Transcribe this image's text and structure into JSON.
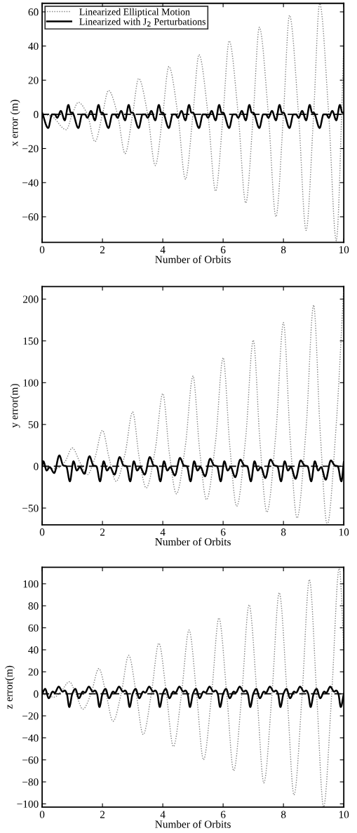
{
  "chart_data": [
    {
      "type": "line",
      "xlabel": "Number of Orbits",
      "ylabel": "x error (m)",
      "xlim": [
        0,
        10
      ],
      "ylim": [
        -75,
        65
      ],
      "xticks": [
        0,
        2,
        4,
        6,
        8,
        10
      ],
      "yticks": [
        -60,
        -40,
        -20,
        0,
        20,
        40,
        60
      ],
      "legend": "top left",
      "grid": false,
      "ref_lines": [
        {
          "axis": "y",
          "value": 0,
          "color": "#000000",
          "line_style": "dashed"
        }
      ],
      "series": [
        {
          "name": "Linearized Elliptical Motion",
          "color": "#808080",
          "line_style": "dotted",
          "x": [
            0,
            0.3,
            0.8,
            1.0,
            1.2,
            1.5,
            1.75,
            2.0,
            2.2,
            2.5,
            2.75,
            3.0,
            3.2,
            3.5,
            3.75,
            4.0,
            4.2,
            4.5,
            4.75,
            5.0,
            5.2,
            5.5,
            5.75,
            6.0,
            6.2,
            6.5,
            6.75,
            7.0,
            7.2,
            7.5,
            7.75,
            8.0,
            8.2,
            8.5,
            8.75,
            9.0,
            9.2,
            9.5,
            9.75,
            10
          ],
          "values": [
            0,
            -1,
            -9,
            0,
            7,
            0,
            -16,
            0,
            14,
            0,
            -23,
            0,
            21,
            0,
            -30,
            0,
            28,
            0,
            -38,
            0,
            35,
            0,
            -45,
            0,
            43,
            0,
            -52,
            0,
            51,
            0,
            -60,
            0,
            58,
            0,
            -68,
            0,
            65,
            0,
            -74,
            40
          ]
        },
        {
          "name": "Linearized with J$_{2}$ Perturbations",
          "color": "#000000",
          "line_style": "solid",
          "x": [
            0,
            0.2,
            0.33,
            0.42,
            0.5,
            0.62,
            0.75,
            0.87,
            0.95,
            1,
            1.2,
            1.33,
            1.42,
            1.5,
            1.62,
            1.75,
            1.87,
            1.95,
            2,
            2.2,
            2.33,
            2.42,
            2.5,
            2.62,
            2.75,
            2.87,
            2.95,
            3,
            3.2,
            3.33,
            3.42,
            3.5,
            3.62,
            3.75,
            3.87,
            3.95,
            4,
            4.2,
            4.33,
            4.42,
            4.5,
            4.62,
            4.75,
            4.87,
            4.95,
            5,
            5.2,
            5.33,
            5.42,
            5.5,
            5.62,
            5.75,
            5.87,
            5.95,
            6,
            6.2,
            6.33,
            6.42,
            6.5,
            6.62,
            6.75,
            6.87,
            6.95,
            7,
            7.2,
            7.33,
            7.42,
            7.5,
            7.62,
            7.75,
            7.87,
            7.95,
            8,
            8.2,
            8.33,
            8.42,
            8.5,
            8.62,
            8.75,
            8.87,
            8.95,
            9,
            9.2,
            9.33,
            9.42,
            9.5,
            9.62,
            9.75,
            9.87,
            9.95,
            10
          ],
          "values": [
            1,
            -8,
            0,
            0,
            -2,
            2,
            -3.5,
            5.5,
            1,
            1,
            -8,
            0,
            0,
            -2,
            2,
            -3.5,
            5.5,
            1,
            1,
            -8,
            0,
            0,
            -2,
            2,
            -3.5,
            5.5,
            1,
            1,
            -8,
            0,
            0,
            -2,
            2,
            -3.5,
            5.5,
            1,
            1,
            -8,
            0,
            0,
            -2,
            2,
            -3.5,
            5.5,
            1,
            1,
            -8,
            0,
            0,
            -2,
            2,
            -3.5,
            5.5,
            1,
            1,
            -8,
            0,
            0,
            -2,
            2,
            -3.5,
            5.5,
            1,
            1,
            -8,
            0,
            0,
            -2,
            2,
            -3.5,
            5.5,
            1,
            1,
            -8,
            0,
            0,
            -2,
            2,
            -3.5,
            5.5,
            1,
            1,
            -8,
            0,
            0,
            -2,
            2,
            -3.5,
            5.5,
            1,
            1
          ]
        }
      ]
    },
    {
      "type": "line",
      "xlabel": "Number of Orbits",
      "ylabel": "y error(m)",
      "xlim": [
        0,
        10
      ],
      "ylim": [
        -70,
        215
      ],
      "xticks": [
        0,
        2,
        4,
        6,
        8,
        10
      ],
      "yticks": [
        -50,
        0,
        50,
        100,
        150,
        200
      ],
      "grid": false,
      "ref_lines": [
        {
          "axis": "y",
          "value": 0,
          "color": "#000000",
          "line_style": "dashed"
        }
      ],
      "series": [
        {
          "color": "#808080",
          "line_style": "dotted",
          "x": [
            0,
            0.45,
            0.75,
            1.0,
            1.25,
            1.5,
            1.75,
            2.0,
            2.22,
            2.45,
            2.75,
            3.0,
            3.22,
            3.45,
            3.75,
            4.0,
            4.22,
            4.45,
            4.75,
            5.0,
            5.22,
            5.45,
            5.75,
            6.0,
            6.22,
            6.45,
            6.75,
            7.0,
            7.22,
            7.45,
            7.75,
            8.0,
            8.22,
            8.45,
            8.75,
            9.0,
            9.22,
            9.45,
            9.75,
            10
          ],
          "values": [
            0,
            -3,
            5,
            22,
            5,
            -10,
            10,
            43,
            10,
            -18,
            15,
            65,
            10,
            -26,
            20,
            87,
            15,
            -33,
            25,
            108,
            20,
            -40,
            30,
            130,
            25,
            -48,
            35,
            151,
            30,
            -55,
            40,
            172,
            35,
            -62,
            45,
            193,
            40,
            -70,
            50,
            215
          ]
        },
        {
          "color": "#000000",
          "line_style": "solid",
          "x": [
            0,
            0.04,
            0.15,
            0.25,
            0.4,
            0.57,
            0.7,
            0.8,
            0.92,
            1.04,
            1.15,
            1.25,
            1.4,
            1.57,
            1.7,
            1.8,
            1.92,
            2.04,
            2.15,
            2.25,
            2.4,
            2.57,
            2.7,
            2.8,
            2.92,
            3.04,
            3.15,
            3.25,
            3.4,
            3.57,
            3.7,
            3.8,
            3.92,
            4.04,
            4.15,
            4.25,
            4.4,
            4.57,
            4.7,
            4.8,
            4.92,
            5.04,
            5.15,
            5.25,
            5.4,
            5.57,
            5.7,
            5.8,
            5.92,
            6.04,
            6.15,
            6.25,
            6.4,
            6.57,
            6.7,
            6.8,
            6.92,
            7.04,
            7.15,
            7.25,
            7.4,
            7.57,
            7.7,
            7.8,
            7.92,
            8.04,
            8.15,
            8.25,
            8.4,
            8.57,
            8.7,
            8.8,
            8.92,
            9.04,
            9.15,
            9.25,
            9.4,
            9.57,
            9.7,
            9.8,
            9.92,
            10
          ],
          "values": [
            0,
            6,
            -5,
            -1,
            -8,
            13,
            1,
            0,
            -18,
            6,
            -5,
            -1,
            -9,
            12,
            1,
            0,
            -18,
            6,
            -5,
            -1,
            -10,
            11,
            1,
            0,
            -18,
            6,
            -5,
            -1,
            -10,
            11,
            1,
            0,
            -18,
            6,
            -5,
            -1,
            -11,
            10,
            1,
            0,
            -18,
            6,
            -5,
            -1,
            -12,
            9,
            1,
            0,
            -18,
            6,
            -5,
            -1,
            -13,
            8,
            1,
            0,
            -18,
            6,
            -5,
            -1,
            -14,
            8,
            1,
            0,
            -18,
            6,
            -5,
            -1,
            -15,
            7,
            1,
            0,
            -18,
            6,
            -5,
            -1,
            -16,
            7,
            1,
            0,
            -18,
            5
          ]
        }
      ]
    },
    {
      "type": "line",
      "xlabel": "Number of Orbits",
      "ylabel": "z error(m)",
      "xlim": [
        0,
        10
      ],
      "ylim": [
        -103,
        115
      ],
      "xticks": [
        0,
        2,
        4,
        6,
        8,
        10
      ],
      "yticks": [
        -100,
        -80,
        -60,
        -40,
        -20,
        0,
        20,
        40,
        60,
        80,
        100
      ],
      "grid": false,
      "ref_lines": [
        {
          "axis": "y",
          "value": 0,
          "color": "#000000",
          "line_style": "dashed"
        }
      ],
      "series": [
        {
          "color": "#808080",
          "line_style": "dotted",
          "x": [
            0,
            0.4,
            0.65,
            0.9,
            1.12,
            1.35,
            1.62,
            1.88,
            2.12,
            2.35,
            2.62,
            2.87,
            3.12,
            3.35,
            3.62,
            3.87,
            4.12,
            4.35,
            4.62,
            4.87,
            5.12,
            5.35,
            5.62,
            5.86,
            6.12,
            6.35,
            6.62,
            6.86,
            7.12,
            7.35,
            7.62,
            7.86,
            8.12,
            8.35,
            8.62,
            8.86,
            9.1,
            9.33,
            9.6,
            9.85,
            10
          ],
          "values": [
            0,
            -3,
            3,
            11,
            0,
            -14,
            0,
            23,
            0,
            -25,
            0,
            35,
            0,
            -37,
            0,
            46,
            0,
            -48,
            0,
            58,
            0,
            -60,
            0,
            69,
            0,
            -70,
            0,
            81,
            0,
            -81,
            0,
            92,
            0,
            -92,
            0,
            104,
            0,
            -103,
            0,
            115,
            40
          ]
        },
        {
          "color": "#000000",
          "line_style": "solid",
          "x": [
            0,
            0.1,
            0.22,
            0.35,
            0.42,
            0.55,
            0.68,
            0.75,
            0.82,
            0.9,
            1,
            1.1,
            1.22,
            1.35,
            1.42,
            1.55,
            1.68,
            1.75,
            1.82,
            1.9,
            2,
            2.1,
            2.22,
            2.35,
            2.42,
            2.55,
            2.68,
            2.75,
            2.82,
            2.9,
            3,
            3.1,
            3.22,
            3.35,
            3.42,
            3.55,
            3.68,
            3.75,
            3.82,
            3.9,
            4,
            4.1,
            4.22,
            4.35,
            4.42,
            4.55,
            4.68,
            4.75,
            4.82,
            4.9,
            5,
            5.1,
            5.22,
            5.35,
            5.42,
            5.55,
            5.68,
            5.75,
            5.82,
            5.9,
            6,
            6.1,
            6.22,
            6.35,
            6.42,
            6.55,
            6.68,
            6.75,
            6.82,
            6.9,
            7,
            7.1,
            7.22,
            7.35,
            7.42,
            7.55,
            7.68,
            7.75,
            7.82,
            7.9,
            8,
            8.1,
            8.22,
            8.35,
            8.42,
            8.55,
            8.68,
            8.75,
            8.82,
            8.9,
            9,
            9.1,
            9.22,
            9.35,
            9.42,
            9.55,
            9.68,
            9.75,
            9.82,
            9.9,
            10
          ],
          "values": [
            0,
            4.5,
            -4,
            2,
            1,
            6.5,
            2,
            3,
            0,
            -12,
            0,
            4.5,
            -4,
            2,
            1,
            6.5,
            2,
            3,
            0,
            -12,
            0,
            4.5,
            -4,
            2,
            1,
            6.5,
            2,
            3,
            0,
            -12,
            0,
            4.5,
            -4,
            2,
            1,
            6.5,
            2,
            3,
            0,
            -12,
            0,
            4.5,
            -4,
            2,
            1,
            6.5,
            2,
            3,
            0,
            -12,
            0,
            4.5,
            -4,
            2,
            1,
            6.5,
            2,
            3,
            0,
            -12,
            0,
            4.5,
            -4,
            2,
            1,
            6.5,
            2,
            3,
            0,
            -12,
            0,
            4.5,
            -4,
            2,
            1,
            6.5,
            2,
            3,
            0,
            -12,
            0,
            4.5,
            -4,
            2,
            1,
            6.5,
            2,
            3,
            0,
            -12,
            0,
            4.5,
            -4,
            2,
            1,
            6.5,
            2,
            3,
            0,
            -12,
            0
          ]
        }
      ]
    }
  ]
}
